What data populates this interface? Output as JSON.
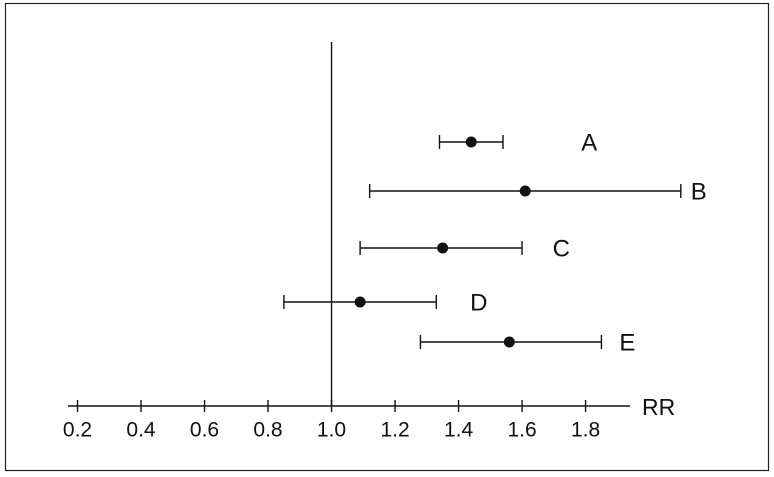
{
  "chart_data": {
    "type": "forest",
    "categories": [
      "A",
      "B",
      "C",
      "D",
      "E"
    ],
    "values": [
      1.44,
      1.61,
      1.35,
      1.09,
      1.56
    ],
    "lower": [
      1.34,
      1.12,
      1.09,
      0.85,
      1.28
    ],
    "upper": [
      1.54,
      2.1,
      1.6,
      1.33,
      1.85
    ],
    "color": "#111111",
    "x_label": "RR",
    "reference_line": {
      "value": 1,
      "label": "1.0"
    },
    "xlim": [
      0.17,
      1.94
    ],
    "xticks": [
      0.2,
      0.4,
      0.6,
      0.8,
      {
        "value": 1,
        "label": "1.0"
      },
      1.2,
      1.4,
      1.6,
      1.8
    ]
  }
}
